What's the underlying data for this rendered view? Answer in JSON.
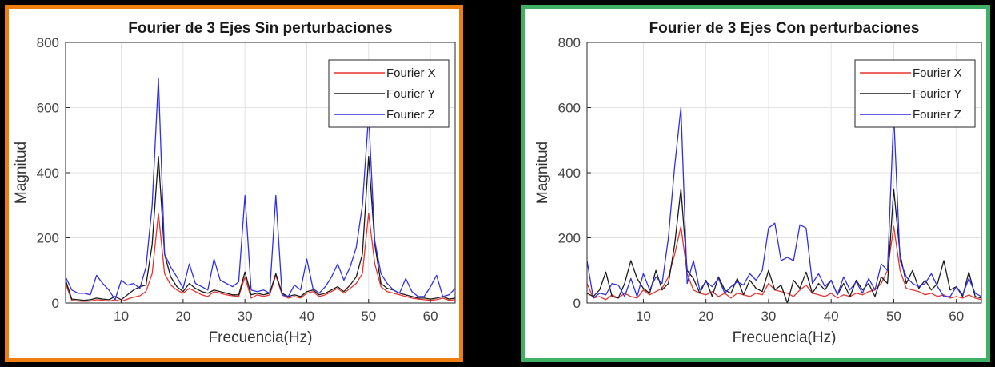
{
  "colors": {
    "left_frame": "#f07d10",
    "right_frame": "#3fb064",
    "series_x": "#e8322d",
    "series_y": "#1a1a1a",
    "series_z": "#2f2fe8"
  },
  "chart_data": [
    {
      "type": "line",
      "title": "Fourier de 3 Ejes Sin perturbaciones",
      "xlabel": "Frecuencia(Hz)",
      "ylabel": "Magnitud",
      "xlim": [
        1,
        64
      ],
      "ylim": [
        0,
        800
      ],
      "xticks": [
        10,
        20,
        30,
        40,
        50,
        60
      ],
      "yticks": [
        0,
        200,
        400,
        600,
        800
      ],
      "grid": true,
      "legend": "top-right",
      "x": [
        1,
        2,
        3,
        4,
        5,
        6,
        7,
        8,
        9,
        10,
        11,
        12,
        13,
        14,
        15,
        16,
        17,
        18,
        19,
        20,
        21,
        22,
        23,
        24,
        25,
        26,
        27,
        28,
        29,
        30,
        31,
        32,
        33,
        34,
        35,
        36,
        37,
        38,
        39,
        40,
        41,
        42,
        43,
        44,
        45,
        46,
        47,
        48,
        49,
        50,
        51,
        52,
        53,
        54,
        55,
        56,
        57,
        58,
        59,
        60,
        61,
        62,
        63,
        64
      ],
      "series": [
        {
          "name": "Fourier X",
          "color": "#e8322d",
          "values": [
            60,
            8,
            6,
            5,
            6,
            10,
            8,
            6,
            10,
            5,
            12,
            18,
            22,
            35,
            90,
            275,
            90,
            55,
            40,
            30,
            45,
            35,
            25,
            20,
            35,
            30,
            25,
            22,
            20,
            80,
            15,
            25,
            20,
            25,
            85,
            25,
            15,
            20,
            15,
            30,
            35,
            20,
            25,
            35,
            45,
            30,
            45,
            60,
            90,
            275,
            120,
            50,
            35,
            30,
            25,
            20,
            15,
            12,
            10,
            8,
            10,
            15,
            8,
            10
          ]
        },
        {
          "name": "Fourier Y",
          "color": "#1a1a1a",
          "values": [
            70,
            12,
            10,
            8,
            10,
            15,
            12,
            10,
            20,
            10,
            25,
            40,
            50,
            55,
            180,
            450,
            150,
            80,
            50,
            35,
            60,
            45,
            35,
            30,
            40,
            35,
            30,
            25,
            25,
            95,
            25,
            30,
            25,
            30,
            90,
            30,
            20,
            25,
            20,
            35,
            40,
            25,
            30,
            40,
            50,
            35,
            55,
            80,
            150,
            450,
            180,
            60,
            45,
            40,
            30,
            25,
            20,
            15,
            15,
            12,
            15,
            20,
            12,
            15
          ]
        },
        {
          "name": "Fourier Z",
          "color": "#2f2fe8",
          "values": [
            80,
            40,
            30,
            30,
            25,
            85,
            60,
            40,
            10,
            70,
            55,
            60,
            45,
            110,
            300,
            690,
            150,
            110,
            80,
            45,
            120,
            60,
            50,
            40,
            135,
            70,
            60,
            50,
            65,
            330,
            40,
            35,
            40,
            30,
            330,
            25,
            20,
            55,
            40,
            135,
            45,
            30,
            50,
            80,
            120,
            70,
            110,
            170,
            300,
            580,
            190,
            90,
            60,
            40,
            30,
            75,
            35,
            20,
            20,
            50,
            85,
            20,
            25,
            45
          ]
        }
      ]
    },
    {
      "type": "line",
      "title": "Fourier de 3 Ejes Con perturbaciones",
      "xlabel": "Frecuencia(Hz)",
      "ylabel": "Magnitud",
      "xlim": [
        1,
        64
      ],
      "ylim": [
        0,
        800
      ],
      "xticks": [
        10,
        20,
        30,
        40,
        50,
        60
      ],
      "yticks": [
        0,
        200,
        400,
        600,
        800
      ],
      "grid": true,
      "legend": "top-right",
      "x": [
        1,
        2,
        3,
        4,
        5,
        6,
        7,
        8,
        9,
        10,
        11,
        12,
        13,
        14,
        15,
        16,
        17,
        18,
        19,
        20,
        21,
        22,
        23,
        24,
        25,
        26,
        27,
        28,
        29,
        30,
        31,
        32,
        33,
        34,
        35,
        36,
        37,
        38,
        39,
        40,
        41,
        42,
        43,
        44,
        45,
        46,
        47,
        48,
        49,
        50,
        51,
        52,
        53,
        54,
        55,
        56,
        57,
        58,
        59,
        60,
        61,
        62,
        63,
        64
      ],
      "series": [
        {
          "name": "Fourier X",
          "color": "#e8322d",
          "values": [
            60,
            15,
            20,
            10,
            25,
            15,
            30,
            20,
            15,
            40,
            25,
            35,
            45,
            80,
            150,
            235,
            90,
            40,
            30,
            25,
            35,
            20,
            30,
            15,
            30,
            25,
            20,
            30,
            25,
            60,
            40,
            35,
            30,
            20,
            40,
            55,
            30,
            25,
            20,
            30,
            15,
            25,
            20,
            30,
            25,
            35,
            40,
            60,
            100,
            235,
            100,
            45,
            40,
            35,
            25,
            30,
            20,
            25,
            15,
            20,
            15,
            25,
            15,
            10
          ]
        },
        {
          "name": "Fourier Y",
          "color": "#1a1a1a",
          "values": [
            30,
            20,
            40,
            95,
            20,
            15,
            60,
            130,
            75,
            45,
            30,
            100,
            40,
            60,
            180,
            350,
            100,
            75,
            30,
            70,
            20,
            80,
            40,
            30,
            75,
            25,
            70,
            45,
            35,
            100,
            40,
            55,
            0,
            70,
            45,
            95,
            30,
            60,
            40,
            70,
            25,
            60,
            20,
            70,
            40,
            60,
            20,
            80,
            60,
            350,
            150,
            60,
            100,
            45,
            70,
            40,
            60,
            130,
            40,
            50,
            20,
            95,
            20,
            15
          ]
        },
        {
          "name": "Fourier Z",
          "color": "#2f2fe8",
          "values": [
            130,
            15,
            30,
            25,
            60,
            55,
            20,
            75,
            20,
            90,
            40,
            80,
            60,
            200,
            420,
            600,
            60,
            130,
            40,
            65,
            50,
            75,
            30,
            50,
            65,
            55,
            90,
            70,
            100,
            230,
            245,
            130,
            140,
            130,
            240,
            230,
            60,
            90,
            50,
            70,
            25,
            80,
            40,
            65,
            30,
            75,
            40,
            120,
            100,
            580,
            130,
            80,
            60,
            50,
            60,
            90,
            50,
            20,
            20,
            50,
            25,
            75,
            30,
            20
          ]
        }
      ]
    }
  ]
}
